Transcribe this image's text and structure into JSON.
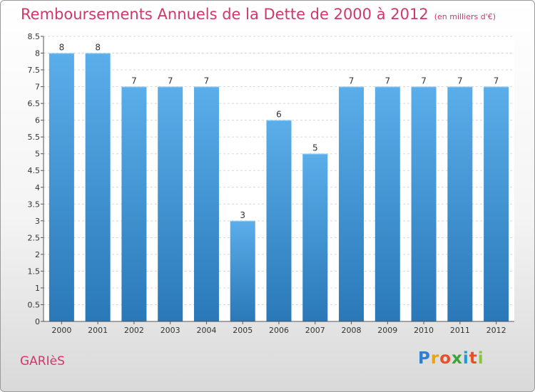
{
  "header": {
    "title": "Remboursements Annuels de la Dette de 2000 à 2012",
    "subtitle": "(en milliers d'€)"
  },
  "footer": {
    "commune": "GARIèS",
    "logo": {
      "letters": [
        "P",
        "r",
        "o",
        "x",
        "i",
        "t",
        "i"
      ],
      "colors": [
        "#2b7fd4",
        "#e8a317",
        "#e84f27",
        "#3aa43a",
        "#1c9ad6",
        "#e84f27",
        "#8bc53f"
      ]
    }
  },
  "chart_data": {
    "type": "bar",
    "categories": [
      "2000",
      "2001",
      "2002",
      "2003",
      "2004",
      "2005",
      "2006",
      "2007",
      "2008",
      "2009",
      "2010",
      "2011",
      "2012"
    ],
    "values": [
      8,
      8,
      7,
      7,
      7,
      3,
      6,
      5,
      7,
      7,
      7,
      7,
      7
    ],
    "data_labels": [
      "8",
      "8",
      "7",
      "7",
      "7",
      "3",
      "6",
      "5",
      "7",
      "7",
      "7",
      "7",
      "7"
    ],
    "yticks": [
      "0",
      "0.5",
      "1",
      "1.5",
      "2",
      "2.5",
      "3",
      "3.5",
      "4",
      "4.5",
      "5",
      "5.5",
      "6",
      "6.5",
      "7",
      "7.5",
      "8",
      "8.5"
    ],
    "ylim": [
      0,
      8.5
    ],
    "bar_color_light": "#5aaeea",
    "bar_color_dark": "#2a78b8",
    "grid": true
  }
}
